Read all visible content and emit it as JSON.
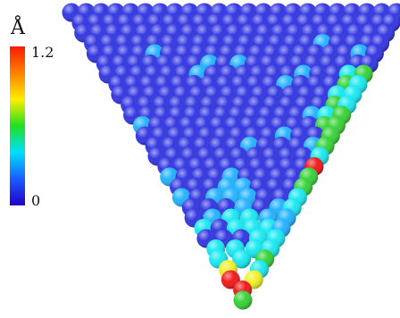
{
  "colorbar": {
    "unit": "Å",
    "max_label": "1.2",
    "min_label": "0",
    "range": [
      0,
      1.2
    ],
    "colors": [
      "#ff1a00",
      "#ff8000",
      "#ffee00",
      "#20e020",
      "#00e0ff",
      "#1a5cff",
      "#2200c8"
    ]
  },
  "atom_colors": {
    "bulk": "#2a2ee0",
    "light_blue": "#1ab0ff",
    "cyan": "#10e8f0",
    "green": "#30d030",
    "yellow": "#f0f020",
    "red": "#f01010"
  }
}
